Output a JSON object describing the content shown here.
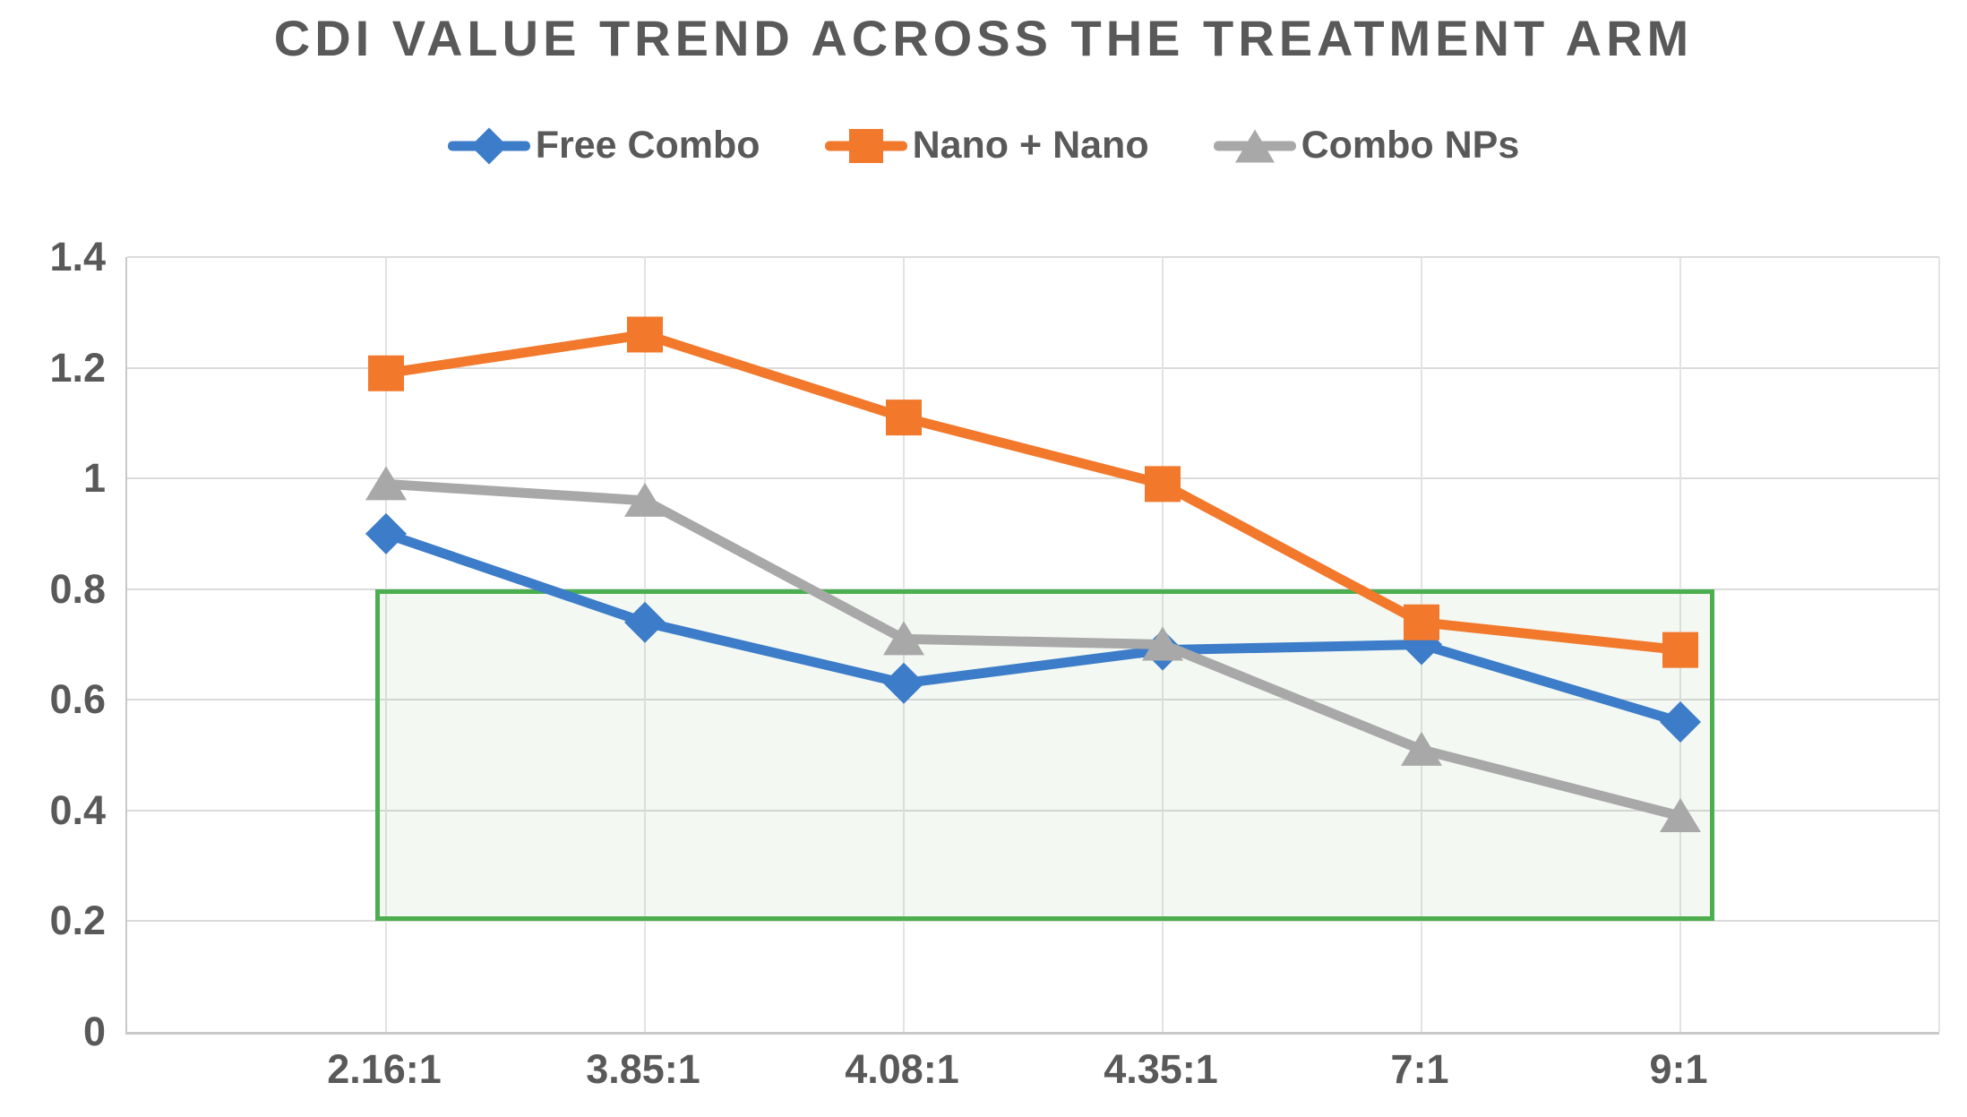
{
  "chart_data": {
    "type": "line",
    "title": "CDI VALUE TREND ACROSS THE TREATMENT ARM",
    "categories": [
      "2.16:1",
      "3.85:1",
      "4.08:1",
      "4.35:1",
      "7:1",
      "9:1"
    ],
    "series": [
      {
        "name": "Free Combo",
        "marker": "diamond",
        "color": "#3c7cc8",
        "values": [
          0.9,
          0.74,
          0.63,
          0.69,
          0.7,
          0.56
        ]
      },
      {
        "name": "Nano + Nano",
        "marker": "square",
        "color": "#f2782c",
        "values": [
          1.19,
          1.26,
          1.11,
          0.99,
          0.74,
          0.69
        ]
      },
      {
        "name": "Combo NPs",
        "marker": "triangle",
        "color": "#a8a8a8",
        "values": [
          0.99,
          0.96,
          0.71,
          0.7,
          0.51,
          0.39
        ]
      }
    ],
    "ylim": [
      0,
      1.4
    ],
    "y_tick_labels": [
      "0",
      "0.2",
      "0.4",
      "0.6",
      "0.8",
      "1",
      "1.2",
      "1.4"
    ],
    "y_tick_values": [
      0,
      0.2,
      0.4,
      0.6,
      0.8,
      1.0,
      1.2,
      1.4
    ],
    "grid": true,
    "legend_position": "top",
    "xlabel": "",
    "ylabel": "",
    "highlight_box": {
      "y_from": 0.2,
      "y_to": 0.8,
      "x_from_slot": 0.96,
      "x_to_slot": 6.13,
      "border_color": "#4bae4f",
      "fill_color": "rgba(96,169,99,0.08)"
    }
  },
  "colors": {
    "title_text": "#595959",
    "axis_text": "#595959",
    "gridline": "#dbdbdb",
    "axis_line": "#c9c9c9",
    "background": "#ffffff"
  }
}
